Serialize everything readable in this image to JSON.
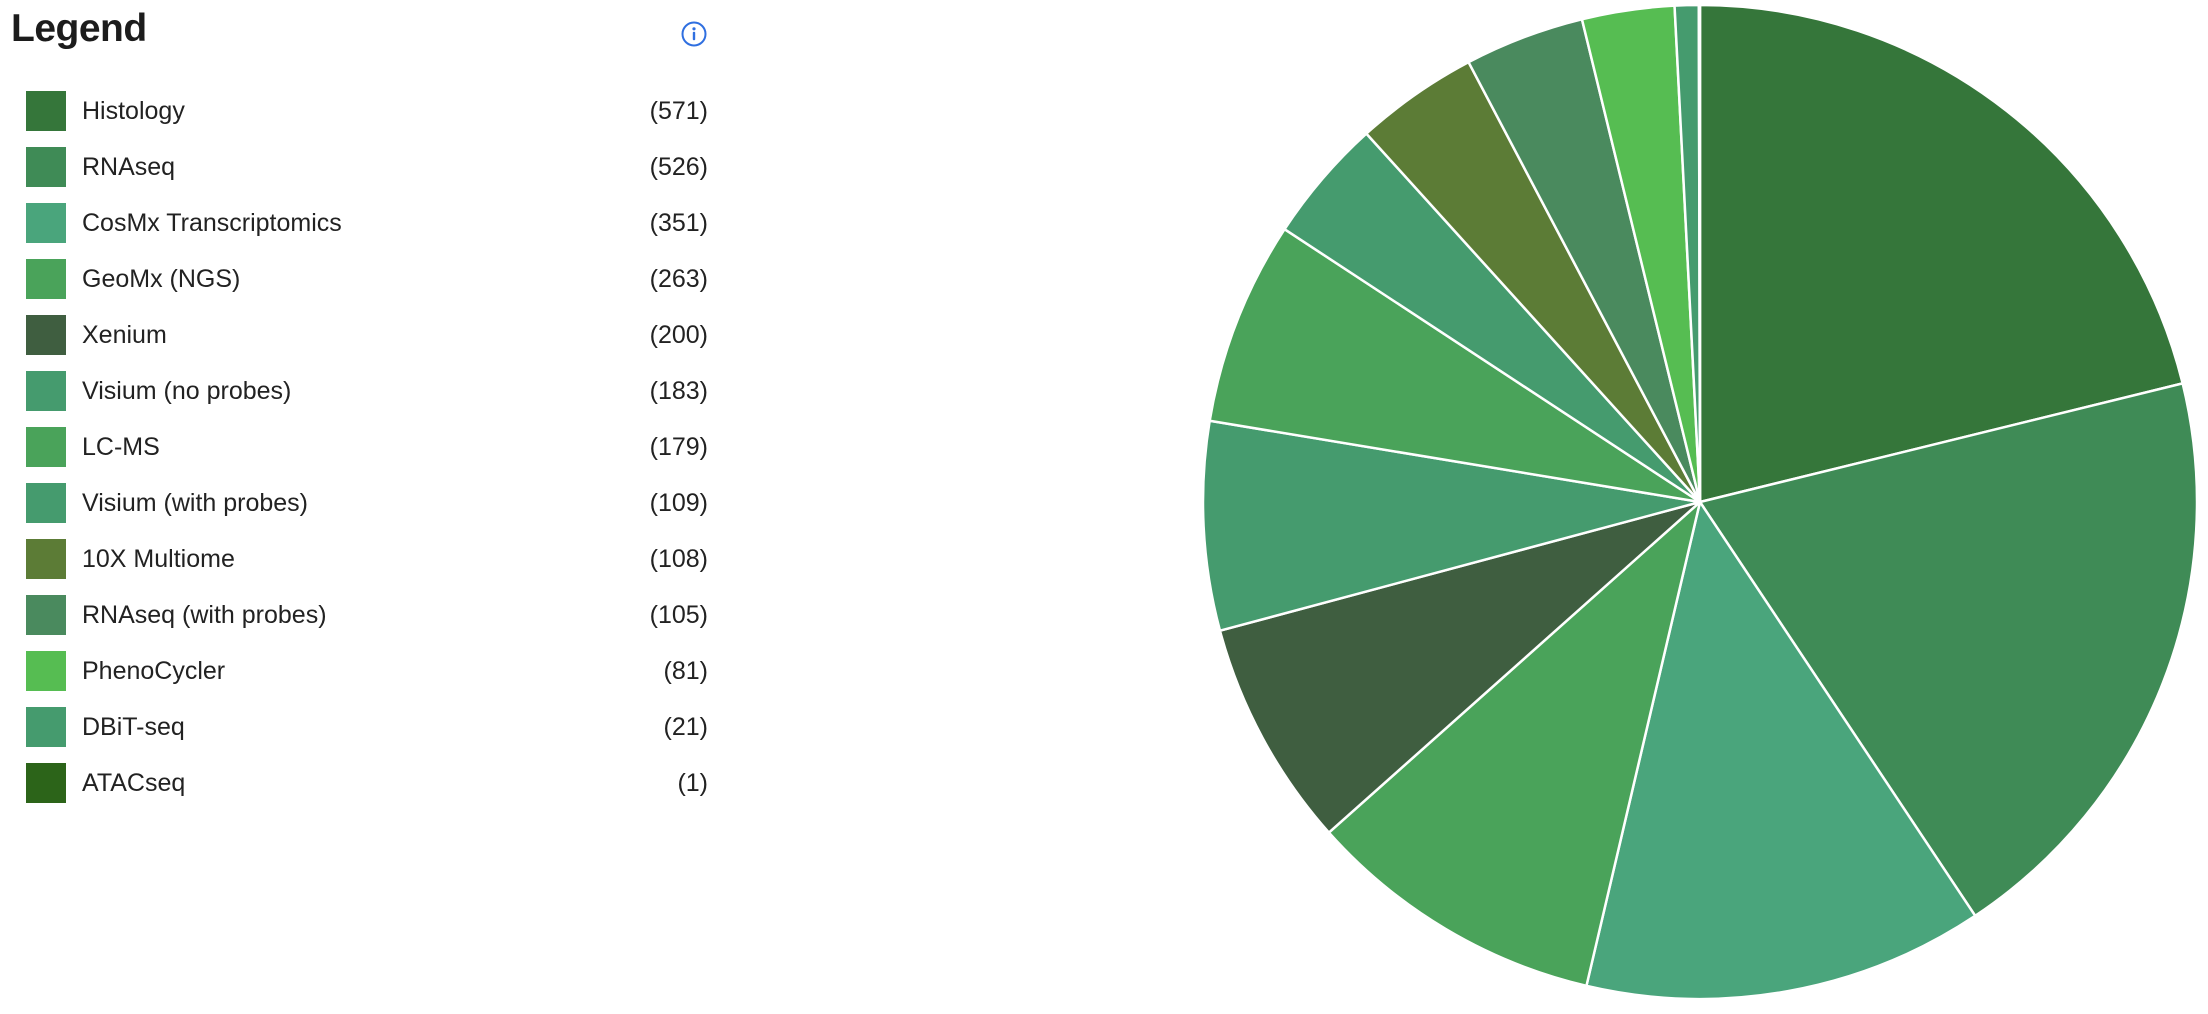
{
  "legend": {
    "title": "Legend",
    "info_icon": "info-circle-icon",
    "info_color": "#2f6fe0"
  },
  "chart_data": {
    "type": "pie",
    "title": "",
    "start_angle": "12 o'clock",
    "direction": "clockwise",
    "legend_position": "left",
    "categories": [
      "Histology",
      "RNAseq",
      "CosMx Transcriptomics",
      "GeoMx (NGS)",
      "Xenium",
      "Visium (no probes)",
      "LC-MS",
      "Visium (with probes)",
      "10X Multiome",
      "RNAseq (with probes)",
      "PhenoCycler",
      "DBiT-seq",
      "ATACseq"
    ],
    "values": [
      571,
      526,
      351,
      263,
      200,
      183,
      179,
      109,
      108,
      105,
      81,
      21,
      1
    ],
    "count_labels": [
      "(571)",
      "(526)",
      "(351)",
      "(263)",
      "(200)",
      "(183)",
      "(179)",
      "(109)",
      "(108)",
      "(105)",
      "(81)",
      "(21)",
      "(1)"
    ],
    "colors": [
      "#35763a",
      "#3f8b56",
      "#4aa57c",
      "#4aa35a",
      "#3f5e40",
      "#459b6e",
      "#4aa35a",
      "#459b6e",
      "#5c7c36",
      "#4a8a5e",
      "#56bd52",
      "#459b6e",
      "#2c6419"
    ],
    "slice_border_color": "#ffffff"
  }
}
